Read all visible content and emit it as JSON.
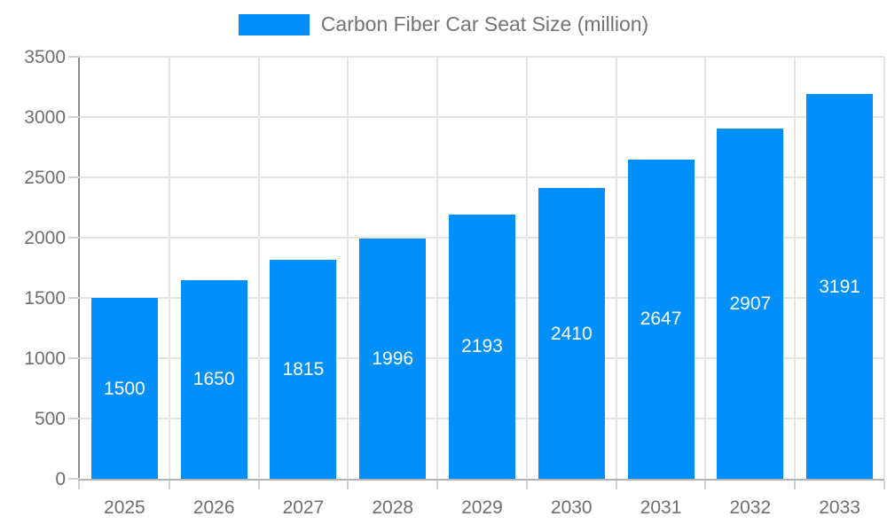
{
  "legend": {
    "label": "Carbon Fiber Car Seat Size (million)",
    "marker_color": "#008FFB"
  },
  "chart_data": {
    "type": "bar",
    "title": "Carbon Fiber Car Seat Size (million)",
    "series_name": "Carbon Fiber Car Seat Size (million)",
    "categories": [
      "2025",
      "2026",
      "2027",
      "2028",
      "2029",
      "2030",
      "2031",
      "2032",
      "2033"
    ],
    "values": [
      1500,
      1650,
      1815,
      1996,
      2193,
      2410,
      2647,
      2907,
      3191
    ],
    "xlabel": "",
    "ylabel": "",
    "ylim": [
      0,
      3500
    ],
    "y_ticks": [
      0,
      500,
      1000,
      1500,
      2000,
      2500,
      3000,
      3500
    ],
    "grid": true,
    "legend_position": "top",
    "bar_color": "#008FFB",
    "value_label_color": "#ffffff",
    "axis_label_color": "#6e6e6e"
  }
}
